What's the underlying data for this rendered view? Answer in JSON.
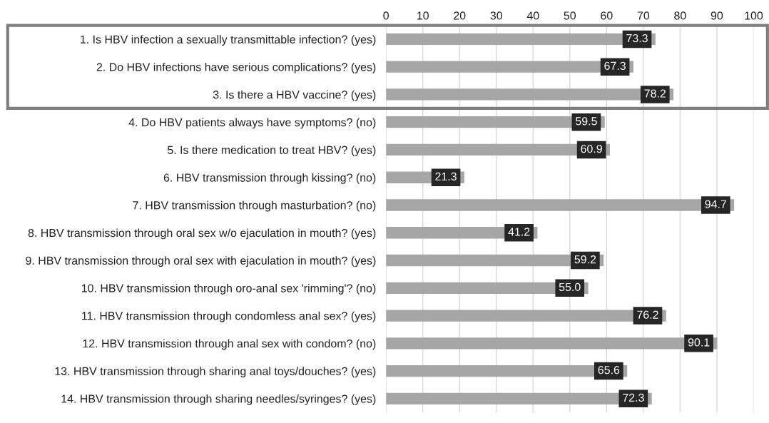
{
  "chart_data": {
    "type": "bar",
    "orientation": "horizontal",
    "categories": [
      "1. Is HBV infection a sexually transmittable infection? (yes)",
      "2. Do HBV infections have serious complications? (yes)",
      "3. Is there a HBV vaccine? (yes)",
      "4. Do HBV patients always have symptoms? (no)",
      "5. Is there medication to treat HBV? (yes)",
      "6. HBV transmission through kissing? (no)",
      "7. HBV transmission through masturbation? (no)",
      "8. HBV transmission through oral sex w/o ejaculation in mouth? (yes)",
      "9. HBV transmission through oral sex with ejaculation in mouth? (yes)",
      "10. HBV transmission through oro-anal sex 'rimming'? (no)",
      "11. HBV transmission through condomless anal sex? (yes)",
      "12. HBV transmission through anal sex with condom? (no)",
      "13. HBV transmission through sharing anal toys/douches? (yes)",
      "14. HBV transmission through sharing needles/syringes? (yes)"
    ],
    "values": [
      73.3,
      67.3,
      78.2,
      59.5,
      60.9,
      21.3,
      94.7,
      41.2,
      59.2,
      55.0,
      76.2,
      90.1,
      65.6,
      72.3
    ],
    "color": "#a6a6a6",
    "xlim": [
      0,
      100
    ],
    "xticks": [
      0,
      10,
      20,
      30,
      40,
      50,
      60,
      70,
      80,
      90,
      100
    ],
    "grid": "x",
    "value_labels": [
      "73.3",
      "67.3",
      "78.2",
      "59.5",
      "60.9",
      "21.3",
      "94.7",
      "41.2",
      "59.2",
      "55.0",
      "76.2",
      "90.1",
      "65.6",
      "72.3"
    ]
  }
}
